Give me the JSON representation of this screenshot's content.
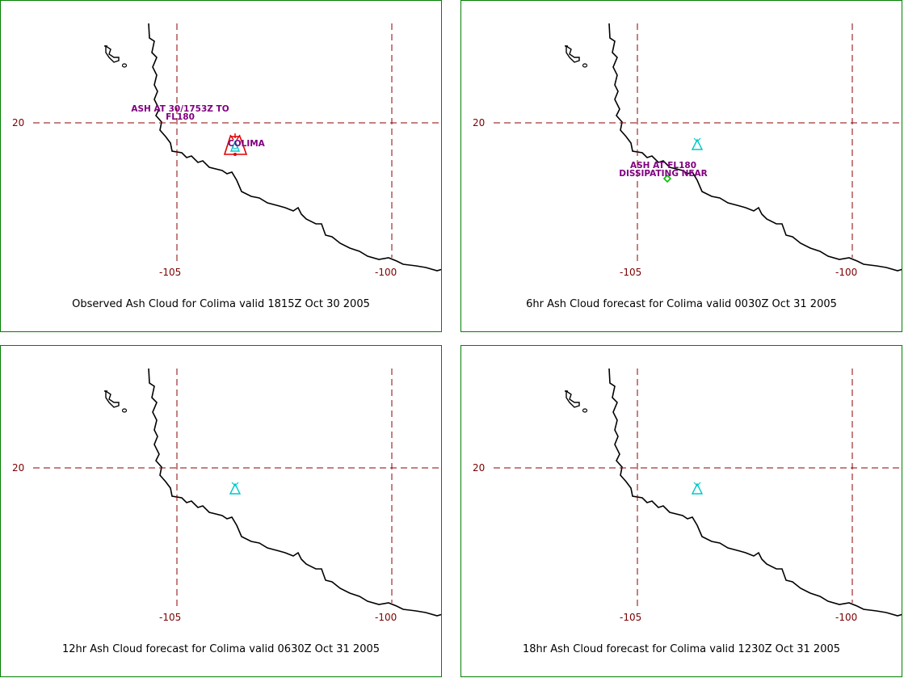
{
  "panels": [
    {
      "caption": "Observed Ash Cloud for Colima valid 1815Z Oct 30 2005",
      "annotation_lines": [
        "ASH AT 30/1753Z TO",
        "FL180"
      ],
      "volcano_label": "COLIMA"
    },
    {
      "caption": "6hr Ash Cloud forecast for Colima valid 0030Z Oct 31 2005",
      "annotation_lines": [
        "ASH AT FL180",
        "DISSIPATING NEAR"
      ]
    },
    {
      "caption": "12hr Ash Cloud forecast for Colima valid 0630Z Oct 31 2005"
    },
    {
      "caption": "18hr Ash Cloud forecast for Colima valid 1230Z Oct 31 2005"
    }
  ],
  "grid": {
    "latitude_label": "20",
    "longitude_labels": [
      "-105",
      "-100"
    ]
  },
  "colors": {
    "border": "#008000",
    "gridline": "#8b0000",
    "annotation": "#800080",
    "volcano_symbol": "#00c8c8",
    "ash_cloud": "#e00000",
    "dissipating_marker": "#00c000"
  }
}
